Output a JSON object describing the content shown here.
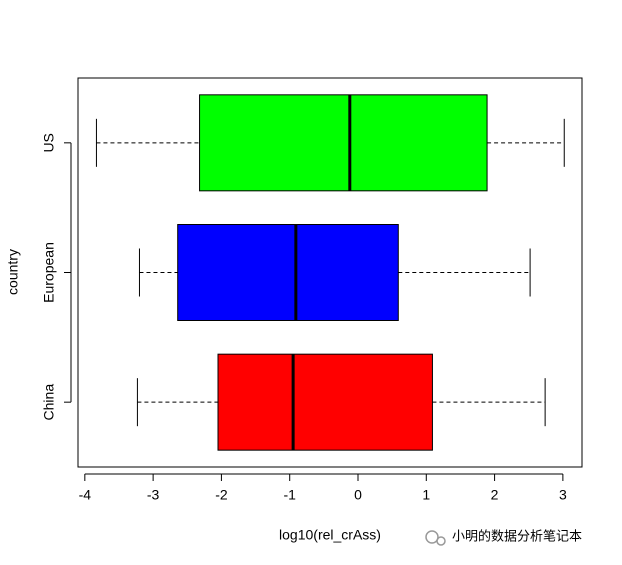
{
  "chart_data": {
    "type": "boxplot",
    "x_label": "log10(rel_crAss)",
    "y_label": "country",
    "categories": [
      "China",
      "European",
      "US"
    ],
    "boxes": [
      {
        "min": -3.23,
        "q1": -2.05,
        "median": -0.95,
        "q3": 1.09,
        "max": 2.74,
        "color": "#ff0000"
      },
      {
        "min": -3.2,
        "q1": -2.64,
        "median": -0.91,
        "q3": 0.59,
        "max": 2.52,
        "color": "#0000ff"
      },
      {
        "min": -3.83,
        "q1": -2.32,
        "median": -0.12,
        "q3": 1.89,
        "max": 3.02,
        "color": "#00ff00"
      }
    ],
    "xlim": [
      -4.1,
      3.28
    ],
    "xticks": [
      -4,
      -3,
      -2,
      -1,
      0,
      1,
      2,
      3
    ]
  },
  "watermark": "小明的数据分析笔记本"
}
